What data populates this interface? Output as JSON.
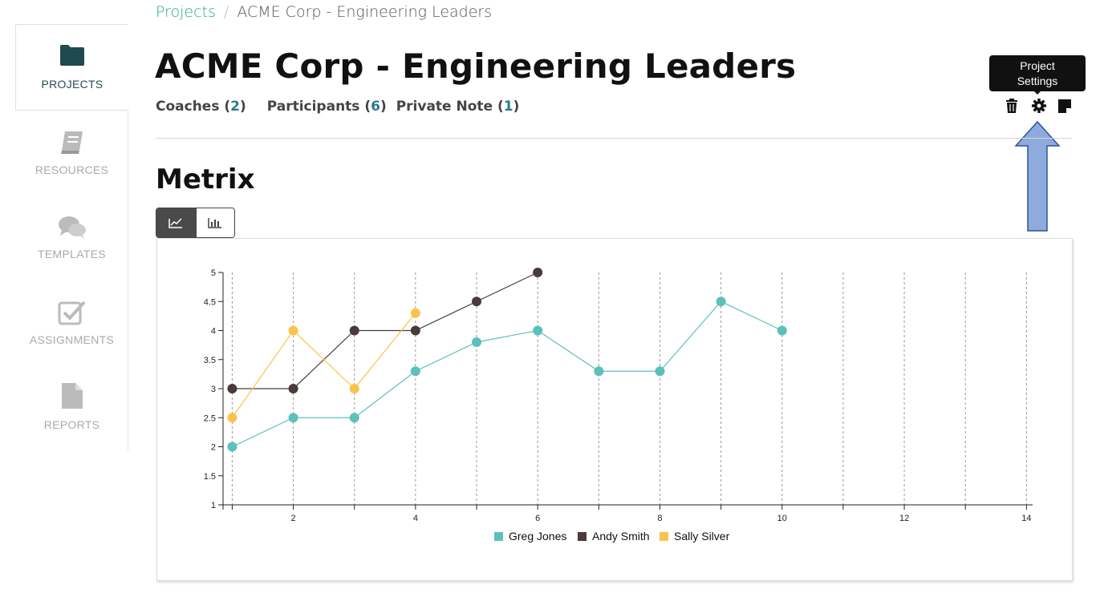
{
  "sidebar": {
    "items": [
      {
        "label": "PROJECTS",
        "icon": "folder-icon",
        "active": true
      },
      {
        "label": "RESOURCES",
        "icon": "book-icon",
        "active": false
      },
      {
        "label": "TEMPLATES",
        "icon": "chat-bubbles-icon",
        "active": false
      },
      {
        "label": "ASSIGNMENTS",
        "icon": "checkbox-icon",
        "active": false
      },
      {
        "label": "REPORTS",
        "icon": "document-icon",
        "active": false
      }
    ]
  },
  "breadcrumb": {
    "root": "Projects",
    "separator": "/",
    "current": "ACME Corp - Engineering Leaders"
  },
  "header": {
    "title": "ACME Corp - Engineering Leaders",
    "counts": [
      {
        "label": "Coaches",
        "count": "2"
      },
      {
        "label": "Participants",
        "count": "6"
      },
      {
        "label": "Private Note",
        "count": "1"
      }
    ]
  },
  "tooltip": {
    "line1": "Project",
    "line2": "Settings"
  },
  "toolbar": {
    "icons": [
      "trash-icon",
      "gear-icon",
      "note-icon"
    ]
  },
  "section": {
    "title": "Metrix"
  },
  "colors": {
    "accent": "#28a987",
    "greg": "#5cc0bd",
    "andy": "#4a3a3a",
    "sally": "#f9c44b",
    "annotation_arrow": "#8faadc"
  },
  "chart_data": {
    "type": "line",
    "xlim": [
      1,
      14
    ],
    "ylim": [
      1,
      5
    ],
    "x_ticks": [
      2,
      4,
      6,
      8,
      10,
      12,
      14
    ],
    "y_ticks": [
      1,
      1.5,
      2,
      2.5,
      3,
      3.5,
      4,
      4.5,
      5
    ],
    "x_tick_labels": [
      "2",
      "4",
      "6",
      "8",
      "10",
      "12",
      "14"
    ],
    "y_tick_labels": [
      "1",
      "1.5",
      "2",
      "2.5",
      "3",
      "3.5",
      "4",
      "4.5",
      "5"
    ],
    "grid": "vertical dashed",
    "legend": "bottom-center",
    "series": [
      {
        "name": "Greg Jones",
        "color": "#5cc0bd",
        "x": [
          1,
          2,
          3,
          4,
          5,
          6,
          7,
          8,
          9,
          10
        ],
        "y": [
          2,
          2.5,
          2.5,
          3.3,
          3.8,
          4,
          3.3,
          3.3,
          4.5,
          4
        ]
      },
      {
        "name": "Andy Smith",
        "color": "#4a3a3a",
        "x": [
          1,
          2,
          3,
          4,
          5,
          6
        ],
        "y": [
          3,
          3,
          4,
          4,
          4.5,
          5
        ]
      },
      {
        "name": "Sally Silver",
        "color": "#f9c44b",
        "x": [
          1,
          2,
          3,
          4
        ],
        "y": [
          2.5,
          4,
          3,
          4.3
        ]
      }
    ]
  }
}
